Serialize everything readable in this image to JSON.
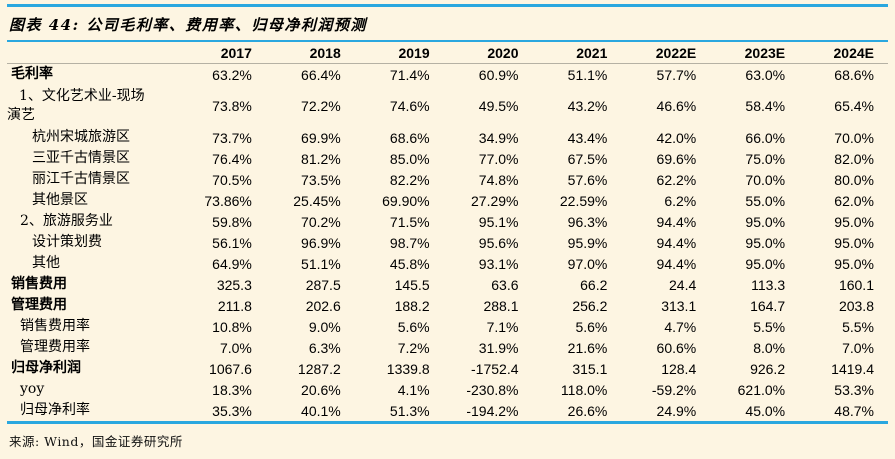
{
  "figure": {
    "title": "图表 44: 公司毛利率、费用率、归母净利润预测",
    "source": "来源: Wind，国金证券研究所"
  },
  "colors": {
    "accent_blue": "#2aa7df",
    "background": "#fdf5e2",
    "header_rule_gray": "#b5b1a4"
  },
  "table": {
    "years": [
      "2017",
      "2018",
      "2019",
      "2020",
      "2021",
      "2022E",
      "2023E",
      "2024E"
    ],
    "rows": [
      {
        "label": "毛利率",
        "bold": true,
        "indent": 0,
        "values": [
          "63.2%",
          "66.4%",
          "71.4%",
          "60.9%",
          "51.1%",
          "57.7%",
          "63.0%",
          "68.6%"
        ]
      },
      {
        "label": "1、文化艺术业-现场演艺",
        "bold": false,
        "indent": 1,
        "wrap": true,
        "values": [
          "73.8%",
          "72.2%",
          "74.6%",
          "49.5%",
          "43.2%",
          "46.6%",
          "58.4%",
          "65.4%"
        ]
      },
      {
        "label": "杭州宋城旅游区",
        "bold": false,
        "indent": 2,
        "values": [
          "73.7%",
          "69.9%",
          "68.6%",
          "34.9%",
          "43.4%",
          "42.0%",
          "66.0%",
          "70.0%"
        ]
      },
      {
        "label": "三亚千古情景区",
        "bold": false,
        "indent": 2,
        "values": [
          "76.4%",
          "81.2%",
          "85.0%",
          "77.0%",
          "67.5%",
          "69.6%",
          "75.0%",
          "82.0%"
        ]
      },
      {
        "label": "丽江千古情景区",
        "bold": false,
        "indent": 2,
        "values": [
          "70.5%",
          "73.5%",
          "82.2%",
          "74.8%",
          "57.6%",
          "62.2%",
          "70.0%",
          "80.0%"
        ]
      },
      {
        "label": "其他景区",
        "bold": false,
        "indent": 2,
        "values": [
          "73.86%",
          "25.45%",
          "69.90%",
          "27.29%",
          "22.59%",
          "6.2%",
          "55.0%",
          "62.0%"
        ]
      },
      {
        "label": "2、旅游服务业",
        "bold": false,
        "indent": 1,
        "values": [
          "59.8%",
          "70.2%",
          "71.5%",
          "95.1%",
          "96.3%",
          "94.4%",
          "95.0%",
          "95.0%"
        ]
      },
      {
        "label": "设计策划费",
        "bold": false,
        "indent": 2,
        "values": [
          "56.1%",
          "96.9%",
          "98.7%",
          "95.6%",
          "95.9%",
          "94.4%",
          "95.0%",
          "95.0%"
        ]
      },
      {
        "label": "其他",
        "bold": false,
        "indent": 2,
        "values": [
          "64.9%",
          "51.1%",
          "45.8%",
          "93.1%",
          "97.0%",
          "94.4%",
          "95.0%",
          "95.0%"
        ]
      },
      {
        "label": "销售费用",
        "bold": true,
        "indent": 0,
        "values": [
          "325.3",
          "287.5",
          "145.5",
          "63.6",
          "66.2",
          "24.4",
          "113.3",
          "160.1"
        ]
      },
      {
        "label": "管理费用",
        "bold": true,
        "indent": 0,
        "values": [
          "211.8",
          "202.6",
          "188.2",
          "288.1",
          "256.2",
          "313.1",
          "164.7",
          "203.8"
        ]
      },
      {
        "label": "销售费用率",
        "bold": false,
        "indent": 1,
        "values": [
          "10.8%",
          "9.0%",
          "5.6%",
          "7.1%",
          "5.6%",
          "4.7%",
          "5.5%",
          "5.5%"
        ]
      },
      {
        "label": "管理费用率",
        "bold": false,
        "indent": 1,
        "values": [
          "7.0%",
          "6.3%",
          "7.2%",
          "31.9%",
          "21.6%",
          "60.6%",
          "8.0%",
          "7.0%"
        ]
      },
      {
        "label": "归母净利润",
        "bold": true,
        "indent": 0,
        "values": [
          "1067.6",
          "1287.2",
          "1339.8",
          "-1752.4",
          "315.1",
          "128.4",
          "926.2",
          "1419.4"
        ]
      },
      {
        "label": "yoy",
        "bold": false,
        "indent": 1,
        "values": [
          "18.3%",
          "20.6%",
          "4.1%",
          "-230.8%",
          "118.0%",
          "-59.2%",
          "621.0%",
          "53.3%"
        ]
      },
      {
        "label": "归母净利率",
        "bold": false,
        "indent": 1,
        "values": [
          "35.3%",
          "40.1%",
          "51.3%",
          "-194.2%",
          "26.6%",
          "24.9%",
          "45.0%",
          "48.7%"
        ]
      }
    ]
  }
}
